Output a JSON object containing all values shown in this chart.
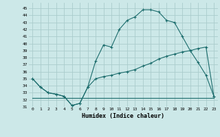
{
  "xlabel": "Humidex (Indice chaleur)",
  "bg_color": "#cce8e8",
  "grid_color": "#aacccc",
  "line_color": "#1a6b6b",
  "xlim": [
    -0.5,
    23.5
  ],
  "ylim": [
    31,
    45.8
  ],
  "xticks": [
    0,
    1,
    2,
    3,
    4,
    5,
    6,
    7,
    8,
    9,
    10,
    11,
    12,
    13,
    14,
    15,
    16,
    17,
    18,
    19,
    20,
    21,
    22,
    23
  ],
  "yticks": [
    31,
    32,
    33,
    34,
    35,
    36,
    37,
    38,
    39,
    40,
    41,
    42,
    43,
    44,
    45
  ],
  "curve1_x": [
    0,
    1,
    2,
    3,
    4,
    5,
    6,
    7,
    8,
    9,
    10,
    11,
    12,
    13,
    14,
    15,
    16,
    17,
    18,
    19,
    20,
    21,
    22,
    23
  ],
  "curve1_y": [
    35.0,
    33.8,
    33.0,
    32.8,
    32.5,
    31.2,
    31.5,
    33.8,
    37.5,
    39.8,
    39.5,
    42.0,
    43.3,
    43.8,
    44.8,
    44.8,
    44.5,
    43.3,
    43.0,
    41.0,
    39.0,
    37.3,
    35.5,
    32.5
  ],
  "curve2_x": [
    0,
    1,
    2,
    3,
    4,
    5,
    6,
    7,
    8,
    9,
    10,
    11,
    12,
    13,
    14,
    15,
    16,
    17,
    18,
    19,
    20,
    21,
    22,
    23
  ],
  "curve2_y": [
    35.0,
    33.8,
    33.0,
    32.8,
    32.5,
    31.2,
    31.5,
    33.8,
    35.0,
    35.3,
    35.5,
    35.8,
    36.0,
    36.3,
    36.8,
    37.2,
    37.8,
    38.2,
    38.5,
    38.8,
    39.0,
    39.3,
    39.5,
    32.5
  ],
  "curve3_x": [
    0,
    1,
    2,
    3,
    4,
    5,
    6,
    7,
    8,
    9,
    10,
    11,
    12,
    13,
    14,
    15,
    16,
    17,
    18,
    19,
    20,
    21,
    22,
    23
  ],
  "curve3_y": [
    32.3,
    32.3,
    32.3,
    32.3,
    32.3,
    32.3,
    32.3,
    32.3,
    32.3,
    32.3,
    32.3,
    32.3,
    32.3,
    32.3,
    32.3,
    32.3,
    32.3,
    32.3,
    32.3,
    32.3,
    32.3,
    32.3,
    32.3,
    32.3
  ]
}
